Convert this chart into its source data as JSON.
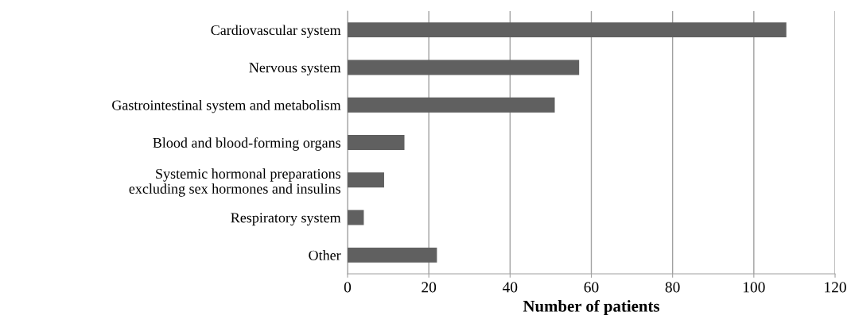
{
  "chart_data": {
    "type": "bar",
    "orientation": "horizontal",
    "xlabel": "Number of patients",
    "categories": [
      "Cardiovascular system",
      "Nervous system",
      "Gastrointestinal system and metabolism",
      "Blood and blood-forming organs",
      "Systemic hormonal preparations\nexcluding sex hormones and insulins",
      "Respiratory system",
      "Other"
    ],
    "values": [
      108,
      57,
      51,
      14,
      9,
      4,
      22
    ],
    "color": "#606060",
    "xlim": [
      0,
      120
    ],
    "xticks": [
      0,
      20,
      40,
      60,
      80,
      100,
      120
    ],
    "grid": "x"
  }
}
